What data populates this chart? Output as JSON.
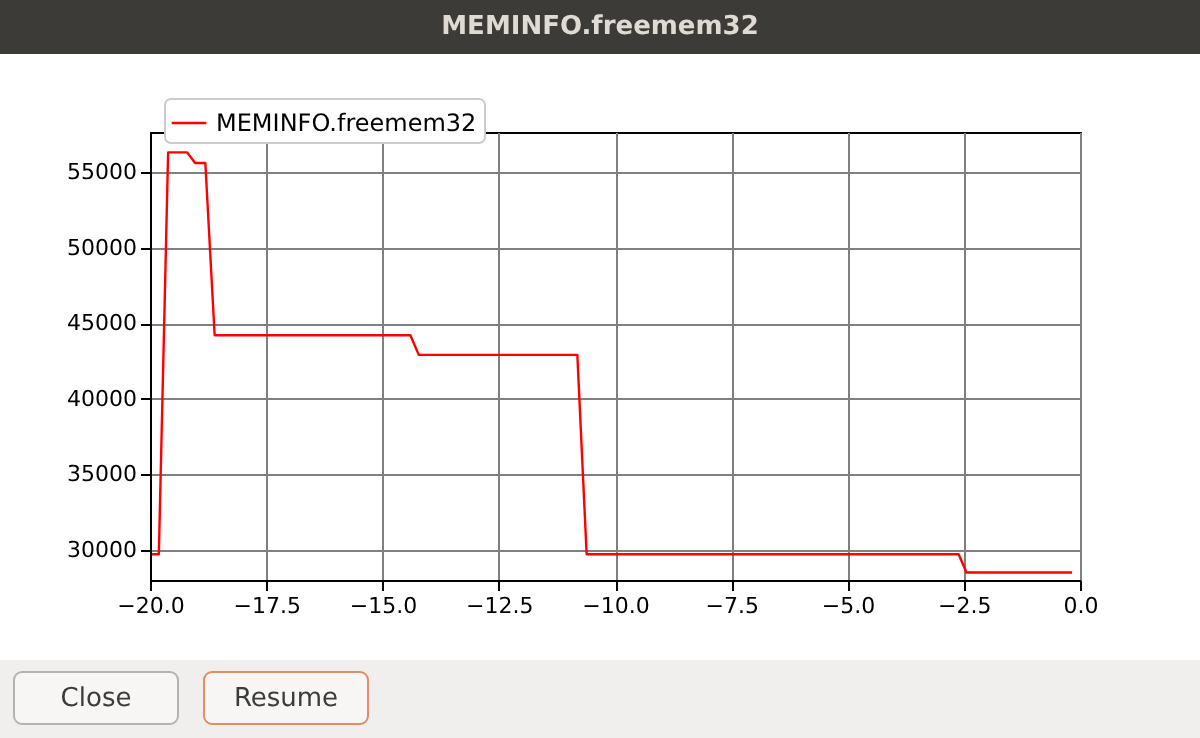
{
  "chart_data": {
    "type": "line",
    "title": "MEMINFO.freemem32",
    "annotations": [
      "Close",
      "Resume"
    ],
    "x": [
      -19.96,
      -19.81,
      -19.61,
      -19.2,
      -19.03,
      -18.81,
      -18.61,
      -14.4,
      -14.22,
      -10.81,
      -10.61,
      -2.61,
      -2.44,
      -0.17
    ],
    "series": [
      {
        "name": "MEMINFO.freemem32",
        "color": "#ff0000",
        "values": [
          29700,
          29700,
          56300,
          56300,
          55600,
          55600,
          44200,
          44200,
          42900,
          42900,
          29700,
          29700,
          28500,
          28500
        ]
      }
    ],
    "xlim": [
      -20,
      0
    ],
    "ylim": [
      28000,
      57650
    ],
    "xticks": [
      {
        "value": -20,
        "label": "−20.0"
      },
      {
        "value": -17.5,
        "label": "−17.5"
      },
      {
        "value": -15,
        "label": "−15.0"
      },
      {
        "value": -12.5,
        "label": "−12.5"
      },
      {
        "value": -10,
        "label": "−10.0"
      },
      {
        "value": -7.5,
        "label": "−7.5"
      },
      {
        "value": -5,
        "label": "−5.0"
      },
      {
        "value": -2.5,
        "label": "−2.5"
      },
      {
        "value": 0,
        "label": "0.0"
      }
    ],
    "yticks": [
      30000,
      35000,
      40000,
      45000,
      50000,
      55000
    ],
    "grid": true,
    "legend": "top left",
    "marker": "none",
    "line_style": "solid"
  }
}
